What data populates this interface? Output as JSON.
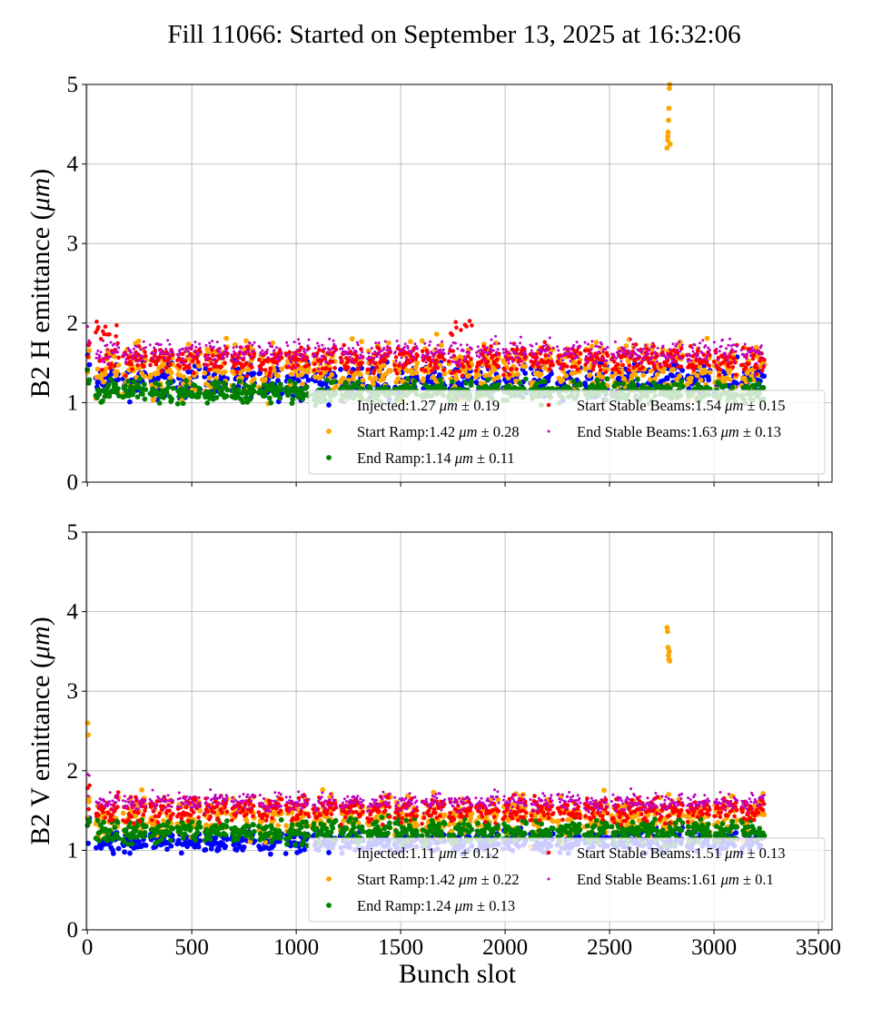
{
  "title": "Fill 11066: Started on September 13, 2025 at 16:32:06",
  "chart_data": [
    {
      "type": "scatter",
      "ylabel_text": "B2 H emittance (",
      "ylabel_unit": "μm",
      "ylabel_close": ")",
      "xlabel": "",
      "xlim": [
        -5,
        3565
      ],
      "ylim": [
        0,
        5
      ],
      "xticks": [
        0,
        500,
        1000,
        1500,
        2000,
        2500,
        3000,
        3500
      ],
      "yticks": [
        0,
        1,
        2,
        3,
        4,
        5
      ],
      "show_xtick_labels": false,
      "grid": true,
      "legend_placement": "lower-right",
      "train_starts": [
        0,
        40,
        170,
        300,
        430,
        560,
        690,
        820,
        950,
        1080,
        1210,
        1340,
        1470,
        1600,
        1730,
        1860,
        1990,
        2120,
        2250,
        2380,
        2510,
        2620,
        2740,
        2870,
        3000,
        3130
      ],
      "train_length_slots": 110,
      "series": [
        {
          "name": "Injected",
          "label": "Injected:1.27 μm ± 0.19",
          "mean": 1.27,
          "std": 0.19,
          "color": "#0000ff",
          "marker": "large"
        },
        {
          "name": "Start Ramp",
          "label": "Start Ramp:1.42 μm ± 0.28",
          "mean": 1.42,
          "std": 0.28,
          "color": "#ffa500",
          "marker": "large",
          "outliers": [
            [
              2775,
              4.2
            ],
            [
              2778,
              4.3
            ],
            [
              2780,
              4.4
            ],
            [
              2782,
              4.55
            ],
            [
              2784,
              4.7
            ],
            [
              2786,
              4.95
            ],
            [
              2788,
              5.0
            ],
            [
              2790,
              4.25
            ],
            [
              2779,
              4.35
            ]
          ]
        },
        {
          "name": "End Ramp",
          "label": "End Ramp:1.14 μm ± 0.11",
          "mean": 1.14,
          "std": 0.11,
          "color": "#008000",
          "marker": "large"
        },
        {
          "name": "Start Stable Beams",
          "label": "Start Stable Beams:1.54 μm ± 0.15",
          "mean": 1.54,
          "std": 0.15,
          "color": "#ff0000",
          "marker": "medium"
        },
        {
          "name": "End Stable Beams",
          "label": "End Stable Beams:1.63 μm ± 0.13",
          "mean": 1.63,
          "std": 0.13,
          "color": "#bf00bf",
          "marker": "small"
        }
      ]
    },
    {
      "type": "scatter",
      "ylabel_text": "B2 V emittance (",
      "ylabel_unit": "μm",
      "ylabel_close": ")",
      "xlabel": "Bunch slot",
      "xlim": [
        -5,
        3565
      ],
      "ylim": [
        0,
        5
      ],
      "xticks": [
        0,
        500,
        1000,
        1500,
        2000,
        2500,
        3000,
        3500
      ],
      "yticks": [
        0,
        1,
        2,
        3,
        4,
        5
      ],
      "show_xtick_labels": true,
      "grid": true,
      "legend_placement": "lower-right",
      "train_starts": [
        0,
        40,
        170,
        300,
        430,
        560,
        690,
        820,
        950,
        1080,
        1210,
        1340,
        1470,
        1600,
        1730,
        1860,
        1990,
        2120,
        2250,
        2380,
        2510,
        2620,
        2740,
        2870,
        3000,
        3130
      ],
      "train_length_slots": 110,
      "series": [
        {
          "name": "Injected",
          "label": "Injected:1.11 μm ± 0.12",
          "mean": 1.11,
          "std": 0.12,
          "color": "#0000ff",
          "marker": "large"
        },
        {
          "name": "Start Ramp",
          "label": "Start Ramp:1.42 μm ± 0.22",
          "mean": 1.42,
          "std": 0.22,
          "color": "#ffa500",
          "marker": "large",
          "outliers": [
            [
              2775,
              3.8
            ],
            [
              2778,
              3.75
            ],
            [
              2780,
              3.55
            ],
            [
              2782,
              3.45
            ],
            [
              2784,
              3.4
            ],
            [
              2786,
              3.5
            ],
            [
              2788,
              3.38
            ],
            [
              2,
              2.6
            ],
            [
              4,
              2.45
            ]
          ]
        },
        {
          "name": "End Ramp",
          "label": "End Ramp:1.24 μm ± 0.13",
          "mean": 1.24,
          "std": 0.13,
          "color": "#008000",
          "marker": "large"
        },
        {
          "name": "Start Stable Beams",
          "label": "Start Stable Beams:1.51 μm ± 0.13",
          "mean": 1.51,
          "std": 0.13,
          "color": "#ff0000",
          "marker": "medium"
        },
        {
          "name": "End Stable Beams",
          "label": "End Stable Beams:1.61 μm ± 0.1",
          "mean": 1.61,
          "std": 0.1,
          "color": "#bf00bf",
          "marker": "small"
        }
      ]
    }
  ]
}
